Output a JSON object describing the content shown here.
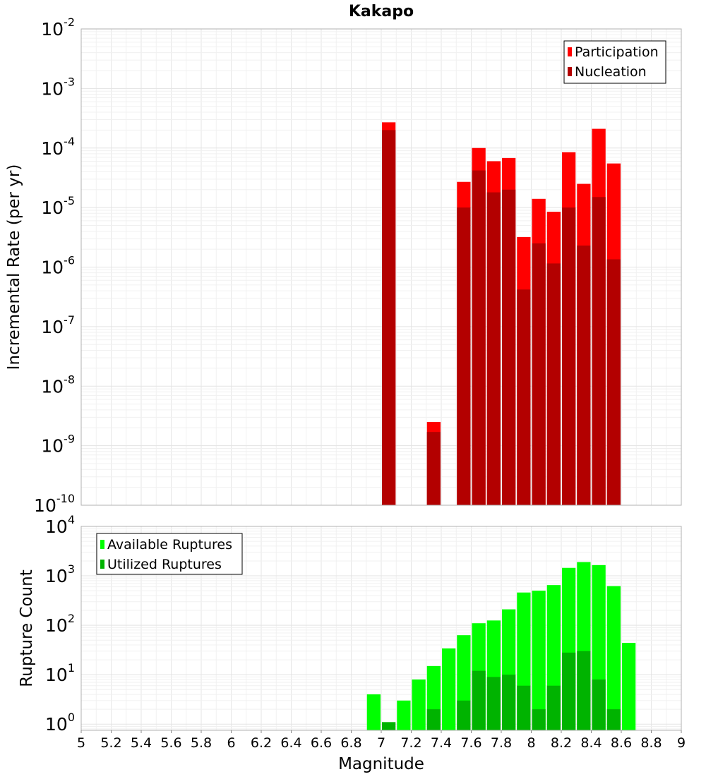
{
  "chart_data": [
    {
      "type": "bar",
      "title": "Kakapo",
      "ylabel": "Incremental Rate (per yr)",
      "xlabel": "",
      "y_scale": "log",
      "ylim": [
        1e-10,
        0.01
      ],
      "xlim": [
        5,
        9
      ],
      "bin_width": 0.1,
      "y_ticks": [
        {
          "base": "10",
          "exp": "-10"
        },
        {
          "base": "10",
          "exp": "-9"
        },
        {
          "base": "10",
          "exp": "-8"
        },
        {
          "base": "10",
          "exp": "-7"
        },
        {
          "base": "10",
          "exp": "-6"
        },
        {
          "base": "10",
          "exp": "-5"
        },
        {
          "base": "10",
          "exp": "-4"
        },
        {
          "base": "10",
          "exp": "-3"
        },
        {
          "base": "10",
          "exp": "-2"
        }
      ],
      "legend": {
        "position": "top-right",
        "entries": [
          {
            "label": "Participation",
            "color": "#ff0000"
          },
          {
            "label": "Nucleation",
            "color": "#b30000"
          }
        ]
      },
      "grid": true,
      "x": [
        7.05,
        7.35,
        7.55,
        7.65,
        7.75,
        7.85,
        7.95,
        8.05,
        8.15,
        8.25,
        8.35,
        8.45,
        8.55
      ],
      "series": [
        {
          "name": "Participation",
          "color": "#ff0000",
          "values": [
            0.00027,
            2.5e-09,
            2.7e-05,
            0.0001,
            6e-05,
            6.8e-05,
            3.2e-06,
            1.4e-05,
            8.5e-06,
            8.5e-05,
            2.5e-05,
            0.00021,
            5.5e-05
          ]
        },
        {
          "name": "Nucleation",
          "color": "#b30000",
          "values": [
            0.0002,
            1.7e-09,
            1e-05,
            4.2e-05,
            1.8e-05,
            2e-05,
            4.2e-07,
            2.5e-06,
            1.15e-06,
            1e-05,
            2.3e-06,
            1.5e-05,
            1.35e-06
          ]
        }
      ]
    },
    {
      "type": "bar",
      "title": "",
      "ylabel": "Rupture Count",
      "xlabel": "Magnitude",
      "y_scale": "log",
      "ylim": [
        0.75,
        10000
      ],
      "xlim": [
        5,
        9
      ],
      "bin_width": 0.1,
      "x_ticks": [
        "5",
        "5.2",
        "5.4",
        "5.6",
        "5.8",
        "6",
        "6.2",
        "6.4",
        "6.6",
        "6.8",
        "7",
        "7.2",
        "7.4",
        "7.6",
        "7.8",
        "8",
        "8.2",
        "8.4",
        "8.6",
        "8.8",
        "9"
      ],
      "y_ticks": [
        {
          "base": "10",
          "exp": "0"
        },
        {
          "base": "10",
          "exp": "1"
        },
        {
          "base": "10",
          "exp": "2"
        },
        {
          "base": "10",
          "exp": "3"
        },
        {
          "base": "10",
          "exp": "4"
        }
      ],
      "legend": {
        "position": "top-left",
        "entries": [
          {
            "label": "Available Ruptures",
            "color": "#00ff00"
          },
          {
            "label": "Utilized Ruptures",
            "color": "#00b300"
          }
        ]
      },
      "grid": true,
      "x": [
        6.95,
        7.05,
        7.15,
        7.25,
        7.35,
        7.45,
        7.55,
        7.65,
        7.75,
        7.85,
        7.95,
        8.05,
        8.15,
        8.25,
        8.35,
        8.45,
        8.55,
        8.65
      ],
      "series": [
        {
          "name": "Available Ruptures",
          "color": "#00ff00",
          "values": [
            4,
            0,
            3,
            8,
            15,
            34,
            63,
            110,
            125,
            210,
            460,
            500,
            650,
            1450,
            1900,
            1650,
            620,
            44
          ]
        },
        {
          "name": "Utilized Ruptures",
          "color": "#00b300",
          "values": [
            0,
            1.1,
            0,
            0,
            2,
            0,
            3,
            12,
            9,
            10,
            6,
            2,
            6,
            28,
            30,
            8,
            2,
            0
          ]
        }
      ]
    }
  ]
}
